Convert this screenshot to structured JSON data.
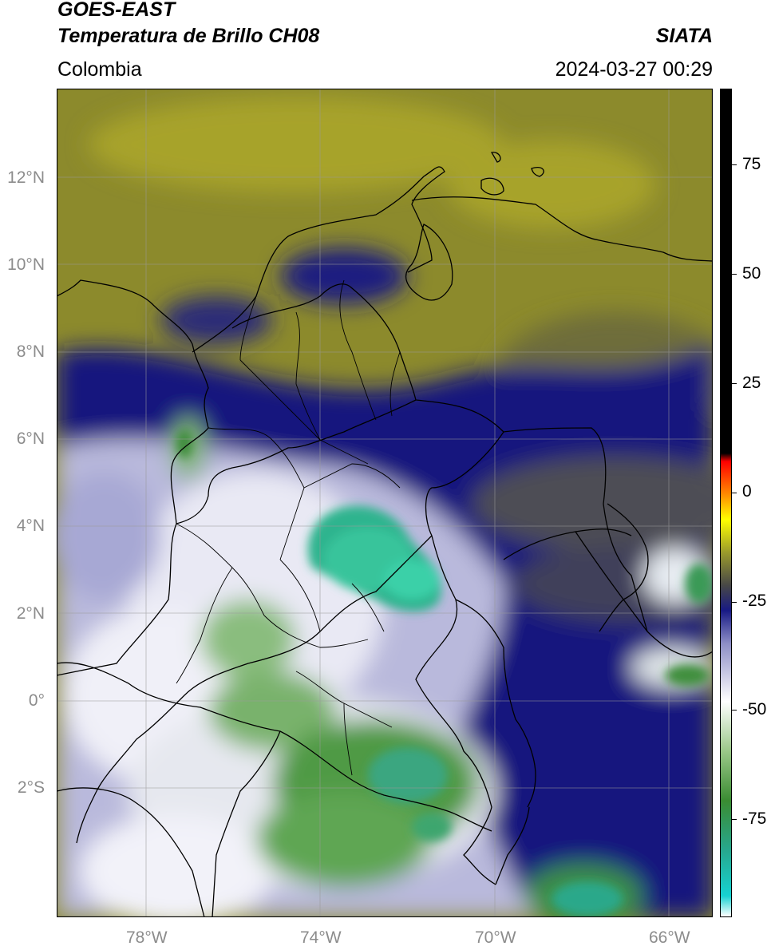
{
  "header": {
    "satellite": "GOES-EAST",
    "product": "Temperatura de Brillo CH08",
    "region": "Colombia",
    "agency": "SIATA",
    "timestamp": "2024-03-27 00:29"
  },
  "map": {
    "lat_ticks": [
      "12°N",
      "10°N",
      "8°N",
      "6°N",
      "4°N",
      "2°N",
      "0°",
      "2°S"
    ],
    "lon_ticks": [
      "78°W",
      "74°W",
      "70°W",
      "66°W"
    ],
    "colors": {
      "dry_olive": "#8d8d2b",
      "dry_yellow": "#a8a42a",
      "navy": "#15157e",
      "lavender": "#b8b9dc",
      "white": "#f4f4fa",
      "green": "#3e8f35",
      "teal": "#2cc59a"
    }
  },
  "colorbar": {
    "labels": [
      "75",
      "50",
      "25",
      "0",
      "-25",
      "-50",
      "-75"
    ],
    "colors": [
      "#ffffff",
      "#16d2d2",
      "#27a78e",
      "#3a8c32",
      "#9bc889",
      "#ffffff",
      "#8d8ec6",
      "#181a84",
      "#474747",
      "#9a9a2b",
      "#ffff00",
      "#ff8c00",
      "#ff0000",
      "#000000"
    ]
  }
}
